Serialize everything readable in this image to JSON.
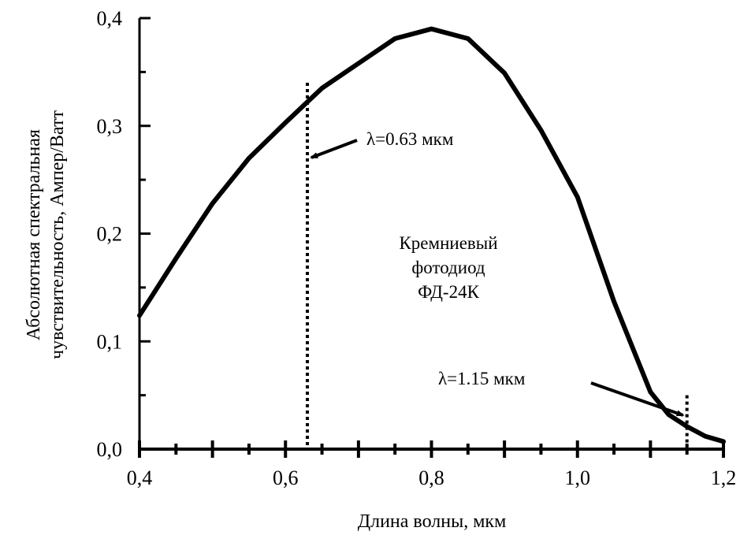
{
  "chart_data": {
    "type": "line",
    "xlabel": "Длина волны, мкм",
    "ylabel_line1": "Абсолютная спектральная",
    "ylabel_line2": "чувствительность, Ампер/Ватт",
    "xlim": [
      0.4,
      1.2
    ],
    "ylim": [
      0.0,
      0.4
    ],
    "x_major_ticks": [
      0.4,
      0.6,
      0.8,
      1.0,
      1.2
    ],
    "x_tick_labels": [
      "0,4",
      "0,6",
      "0,8",
      "1,0",
      "1,2"
    ],
    "y_major_ticks": [
      0.0,
      0.1,
      0.2,
      0.3,
      0.4
    ],
    "y_tick_labels": [
      "0,0",
      "0,1",
      "0,2",
      "0,3",
      "0,4"
    ],
    "grid": false,
    "series": [
      {
        "x": [
          0.4,
          0.45,
          0.5,
          0.55,
          0.6,
          0.65,
          0.7,
          0.75,
          0.8,
          0.85,
          0.9,
          0.95,
          1.0,
          1.05,
          1.1,
          1.125,
          1.15,
          1.175,
          1.2
        ],
        "y": [
          0.124,
          0.177,
          0.228,
          0.27,
          0.303,
          0.335,
          0.358,
          0.381,
          0.39,
          0.381,
          0.349,
          0.296,
          0.234,
          0.137,
          0.053,
          0.032,
          0.021,
          0.012,
          0.007
        ],
        "color": "#000000"
      }
    ],
    "markers": [
      {
        "x": 0.63,
        "y_top": 0.34,
        "label": "λ=0.63 мкм"
      },
      {
        "x": 1.15,
        "y_top": 0.05,
        "label": "λ=1.15 мкм"
      }
    ],
    "annotation": {
      "line1": "Кремниевый",
      "line2": "фотодиод",
      "line3": "ФД-24К"
    }
  }
}
